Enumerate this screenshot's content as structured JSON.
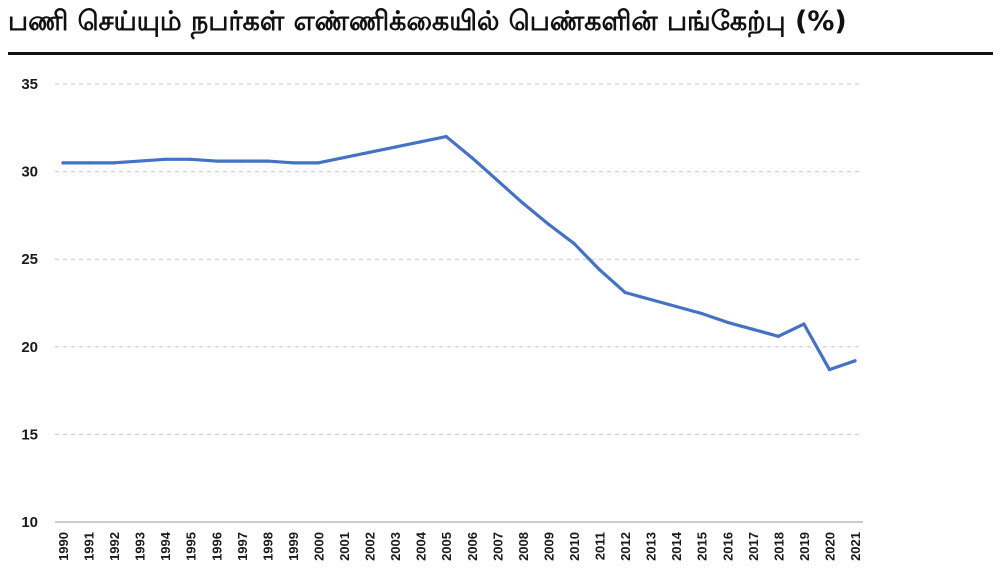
{
  "chart_data": {
    "type": "line",
    "title": "பணி செய்யும் நபர்கள் எண்ணிக்கையில் பெண்களின் பங்கேற்பு (%)",
    "xlabel": "",
    "ylabel": "",
    "ylim": [
      10,
      35
    ],
    "yticks": [
      10,
      15,
      20,
      25,
      30,
      35
    ],
    "grid": true,
    "legend": "none",
    "categories": [
      "1990",
      "1991",
      "1992",
      "1993",
      "1994",
      "1995",
      "1996",
      "1997",
      "1998",
      "1999",
      "2000",
      "2001",
      "2002",
      "2003",
      "2004",
      "2005",
      "2006",
      "2007",
      "2008",
      "2009",
      "2010",
      "2011",
      "2012",
      "2013",
      "2014",
      "2015",
      "2016",
      "2017",
      "2018",
      "2019",
      "2020",
      "2021"
    ],
    "series": [
      {
        "color": "#4472c4",
        "values": [
          30.5,
          30.5,
          30.5,
          30.6,
          30.7,
          30.7,
          30.6,
          30.6,
          30.6,
          30.5,
          30.5,
          30.8,
          31.1,
          31.4,
          31.7,
          32.0,
          30.8,
          29.5,
          28.2,
          27.0,
          25.9,
          24.4,
          23.1,
          22.7,
          22.3,
          21.9,
          21.4,
          21.0,
          20.6,
          21.3,
          18.7,
          19.2
        ]
      }
    ]
  }
}
